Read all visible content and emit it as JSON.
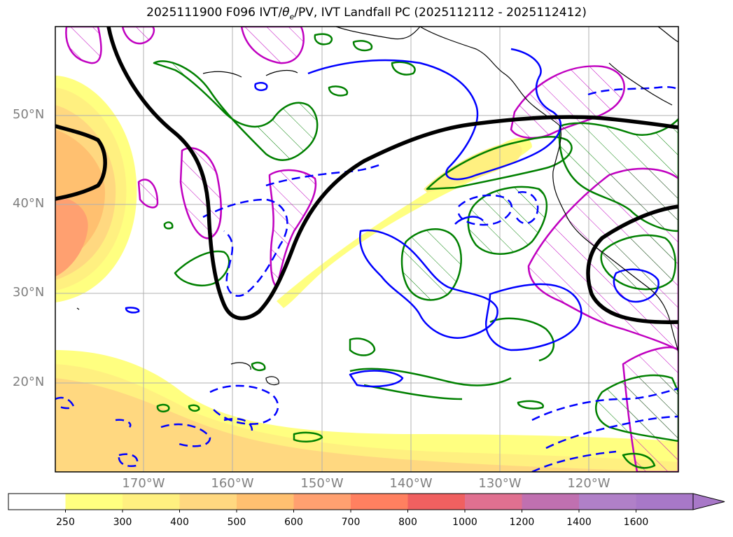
{
  "title": {
    "prefix": "2025111900 F096 IVT/",
    "theta": "θ",
    "theta_sub": "e",
    "suffix": "/PV, IVT Landfall PC (2025112112 - 2025112412)"
  },
  "map": {
    "lat_labels": [
      "50°N",
      "40°N",
      "30°N",
      "20°N"
    ],
    "lon_labels": [
      "170°W",
      "160°W",
      "150°W",
      "140°W",
      "130°W",
      "120°W"
    ],
    "contour_colors": {
      "pv": "#0000ff",
      "theta_e": "#008000",
      "pv_hatched": "#c000c0",
      "landfall_pc": "#000000",
      "coastline": "#000000"
    }
  },
  "colorbar": {
    "ticks": [
      "250",
      "300",
      "400",
      "500",
      "600",
      "700",
      "800",
      "1000",
      "1200",
      "1400",
      "1600"
    ],
    "colors": [
      "#ffffff",
      "#ffff80",
      "#fff080",
      "#ffd880",
      "#ffc070",
      "#ffa070",
      "#ff8060",
      "#f06060",
      "#e07090",
      "#c070b0",
      "#b080c8",
      "#a878c8"
    ],
    "extend": "max"
  }
}
